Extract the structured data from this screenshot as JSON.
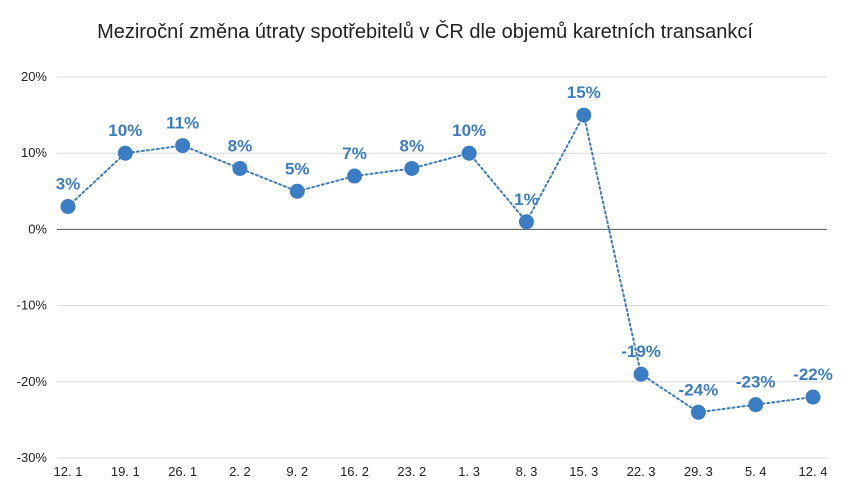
{
  "chart_data": {
    "type": "line",
    "title": "Meziroční změna útraty spotřebitelů v ČR dle objemů karetních transankcí",
    "xlabel": "",
    "ylabel": "",
    "categories": [
      "12. 1",
      "19. 1",
      "26. 1",
      "2. 2",
      "9. 2",
      "16. 2",
      "23. 2",
      "1. 3",
      "8. 3",
      "15. 3",
      "22. 3",
      "29. 3",
      "5. 4",
      "12. 4"
    ],
    "values": [
      3,
      10,
      11,
      8,
      5,
      7,
      8,
      10,
      1,
      15,
      -19,
      -24,
      -23,
      -22
    ],
    "value_labels": [
      "3%",
      "10%",
      "11%",
      "8%",
      "5%",
      "7%",
      "8%",
      "10%",
      "1%",
      "15%",
      "-19%",
      "-24%",
      "-23%",
      "-22%"
    ],
    "ylim": [
      -30,
      20
    ],
    "yticks": [
      20,
      10,
      0,
      -10,
      -20,
      -30
    ],
    "ytick_labels": [
      "20%",
      "10%",
      "0%",
      "-10%",
      "-20%",
      "-30%"
    ],
    "grid": true,
    "line_style": "dotted",
    "color": "#3b7dc4",
    "label_color": "#3b7dc4",
    "legend": "none"
  }
}
